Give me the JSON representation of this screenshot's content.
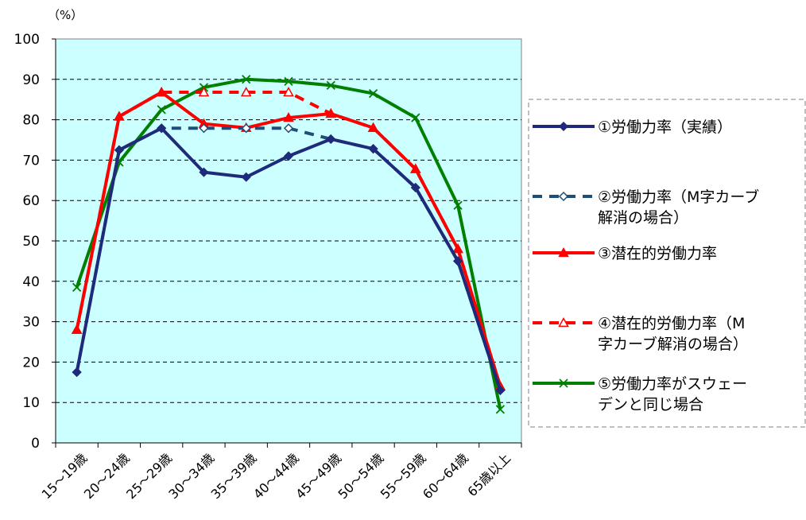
{
  "chart_data": {
    "type": "line",
    "title": "",
    "xlabel": "",
    "ylabel": "",
    "unit_label": "（%）",
    "ylim": [
      0,
      100
    ],
    "yticks": [
      0,
      10,
      20,
      30,
      40,
      50,
      60,
      70,
      80,
      90,
      100
    ],
    "grid": true,
    "legend_position": "right",
    "categories": [
      "15～19歳",
      "20～24歳",
      "25～29歳",
      "30～34歳",
      "35～39歳",
      "40～44歳",
      "45～49歳",
      "50～54歳",
      "55～59歳",
      "60～64歳",
      "65歳以上"
    ],
    "series": [
      {
        "name": "①労働力率（実績）",
        "legend_lines": [
          "①労働力率（実績）"
        ],
        "color": "#1f2a7a",
        "dash": "solid",
        "marker": "diamond",
        "values": [
          17.5,
          72.5,
          77.9,
          67.0,
          65.8,
          71.0,
          75.2,
          72.8,
          63.2,
          45.0,
          13.0
        ]
      },
      {
        "name": "②労働力率（M字カーブ解消の場合）",
        "legend_lines": [
          "②労働力率（M字カーブ",
          "解消の場合）"
        ],
        "color": "#1f4e79",
        "dash": "dashed",
        "marker": "diamond-open",
        "values": [
          17.5,
          72.5,
          77.9,
          77.9,
          77.9,
          77.9,
          75.2,
          72.8,
          63.2,
          45.0,
          13.0
        ]
      },
      {
        "name": "③潜在的労働力率",
        "legend_lines": [
          "③潜在的労働力率"
        ],
        "color": "#ff0000",
        "dash": "solid",
        "marker": "triangle",
        "values": [
          28.0,
          80.8,
          86.8,
          79.0,
          78.0,
          80.5,
          81.5,
          78.0,
          67.8,
          48.0,
          14.0
        ]
      },
      {
        "name": "④潜在的労働力率（M字カーブ解消の場合）",
        "legend_lines": [
          "④潜在的労働力率（M",
          "字カーブ解消の場合）"
        ],
        "color": "#ff0000",
        "dash": "dashed",
        "marker": "triangle-open",
        "values": [
          28.0,
          80.8,
          86.8,
          86.8,
          86.8,
          86.8,
          81.5,
          78.0,
          67.8,
          48.0,
          14.0
        ]
      },
      {
        "name": "⑤労働力率がスウェーデンと同じ場合",
        "legend_lines": [
          "⑤労働力率がスウェー",
          "デンと同じ場合"
        ],
        "color": "#008000",
        "dash": "solid",
        "marker": "x",
        "values": [
          38.5,
          69.5,
          82.5,
          88.0,
          90.0,
          89.5,
          88.5,
          86.5,
          80.5,
          58.8,
          8.3
        ]
      }
    ]
  }
}
